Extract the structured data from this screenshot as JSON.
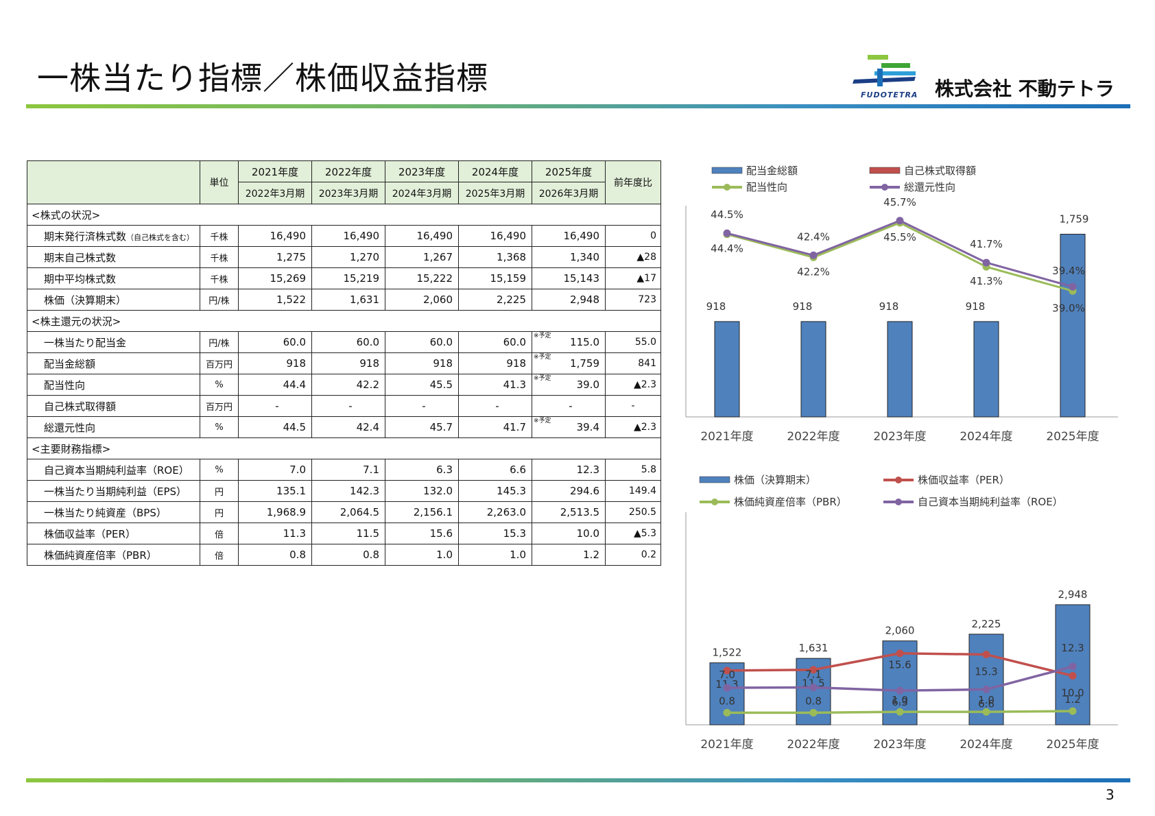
{
  "page": {
    "title": "一株当たり指標／株価収益指標",
    "company": "株式会社 不動テトラ",
    "logo_text": "FUDOTETRA",
    "page_number": "3"
  },
  "table": {
    "unit_header": "単位",
    "change_header": "前年度比",
    "years": [
      "2021年度",
      "2022年度",
      "2023年度",
      "2024年度",
      "2025年度"
    ],
    "periods": [
      "2022年3月期",
      "2023年3月期",
      "2024年3月期",
      "2025年3月期",
      "2026年3月期"
    ],
    "forecast_note": "※予定",
    "sections": [
      {
        "title": "<株式の状況>",
        "rows": [
          {
            "label": "期末発行済株式数",
            "sub": "（自己株式を含む）",
            "unit": "千株",
            "values": [
              "16,490",
              "16,490",
              "16,490",
              "16,490",
              "16,490"
            ],
            "change": "0",
            "forecast": false
          },
          {
            "label": "期末自己株式数",
            "sub": "",
            "unit": "千株",
            "values": [
              "1,275",
              "1,270",
              "1,267",
              "1,368",
              "1,340"
            ],
            "change": "▲28",
            "forecast": false
          },
          {
            "label": "期中平均株式数",
            "sub": "",
            "unit": "千株",
            "values": [
              "15,269",
              "15,219",
              "15,222",
              "15,159",
              "15,143"
            ],
            "change": "▲17",
            "forecast": false
          },
          {
            "label": "株価（決算期末）",
            "sub": "",
            "unit": "円/株",
            "values": [
              "1,522",
              "1,631",
              "2,060",
              "2,225",
              "2,948"
            ],
            "change": "723",
            "forecast": false
          }
        ]
      },
      {
        "title": "<株主還元の状況>",
        "rows": [
          {
            "label": "一株当たり配当金",
            "sub": "",
            "unit": "円/株",
            "values": [
              "60.0",
              "60.0",
              "60.0",
              "60.0",
              "115.0"
            ],
            "change": "55.0",
            "forecast": true
          },
          {
            "label": "配当金総額",
            "sub": "",
            "unit": "百万円",
            "values": [
              "918",
              "918",
              "918",
              "918",
              "1,759"
            ],
            "change": "841",
            "forecast": true
          },
          {
            "label": "配当性向",
            "sub": "",
            "unit": "%",
            "values": [
              "44.4",
              "42.2",
              "45.5",
              "41.3",
              "39.0"
            ],
            "change": "▲2.3",
            "forecast": true
          },
          {
            "label": "自己株式取得額",
            "sub": "",
            "unit": "百万円",
            "values": [
              "-",
              "-",
              "-",
              "-",
              "-"
            ],
            "change": "-",
            "forecast": false
          },
          {
            "label": "総還元性向",
            "sub": "",
            "unit": "%",
            "values": [
              "44.5",
              "42.4",
              "45.7",
              "41.7",
              "39.4"
            ],
            "change": "▲2.3",
            "forecast": true
          }
        ]
      },
      {
        "title": "<主要財務指標>",
        "rows": [
          {
            "label": "自己資本当期純利益率（ROE）",
            "sub": "",
            "unit": "%",
            "values": [
              "7.0",
              "7.1",
              "6.3",
              "6.6",
              "12.3"
            ],
            "change": "5.8",
            "forecast": false
          },
          {
            "label": "一株当たり当期純利益（EPS）",
            "sub": "",
            "unit": "円",
            "values": [
              "135.1",
              "142.3",
              "132.0",
              "145.3",
              "294.6"
            ],
            "change": "149.4",
            "forecast": false
          },
          {
            "label": "一株当たり純資産（BPS）",
            "sub": "",
            "unit": "円",
            "values": [
              "1,968.9",
              "2,064.5",
              "2,156.1",
              "2,263.0",
              "2,513.5"
            ],
            "change": "250.5",
            "forecast": false
          },
          {
            "label": "株価収益率（PER）",
            "sub": "",
            "unit": "倍",
            "values": [
              "11.3",
              "11.5",
              "15.6",
              "15.3",
              "10.0"
            ],
            "change": "▲5.3",
            "forecast": false
          },
          {
            "label": "株価純資産倍率（PBR）",
            "sub": "",
            "unit": "倍",
            "values": [
              "0.8",
              "0.8",
              "1.0",
              "1.0",
              "1.2"
            ],
            "change": "0.2",
            "forecast": false
          }
        ]
      }
    ]
  },
  "chart_data": [
    {
      "type": "bar",
      "categories": [
        "2021年度",
        "2022年度",
        "2023年度",
        "2024年度",
        "2025年度"
      ],
      "series": [
        {
          "name": "配当金総額",
          "kind": "bar",
          "color": "#4f81bd",
          "values": [
            918,
            918,
            918,
            918,
            1759
          ],
          "labels": [
            "918",
            "918",
            "918",
            "918",
            "1,759"
          ]
        },
        {
          "name": "自己株式取得額",
          "kind": "bar",
          "color": "#c0504d",
          "values": [
            0,
            0,
            0,
            0,
            0
          ],
          "labels": []
        },
        {
          "name": "配当性向",
          "kind": "line",
          "color": "#9bbb59",
          "values": [
            44.4,
            42.2,
            45.5,
            41.3,
            39.0
          ],
          "labels": [
            "44.4%",
            "42.2%",
            "45.5%",
            "41.3%",
            "39.0%"
          ]
        },
        {
          "name": "総還元性向",
          "kind": "line",
          "color": "#8064a2",
          "values": [
            44.5,
            42.4,
            45.7,
            41.7,
            39.4
          ],
          "labels": [
            "44.5%",
            "42.4%",
            "45.7%",
            "41.7%",
            "39.4%"
          ]
        }
      ],
      "legend": "top",
      "grid": false
    },
    {
      "type": "bar",
      "categories": [
        "2021年度",
        "2022年度",
        "2023年度",
        "2024年度",
        "2025年度"
      ],
      "series": [
        {
          "name": "株価（決算期末）",
          "kind": "bar",
          "color": "#4f81bd",
          "values": [
            1522,
            1631,
            2060,
            2225,
            2948
          ],
          "labels": [
            "1,522",
            "1,631",
            "2,060",
            "2,225",
            "2,948"
          ]
        },
        {
          "name": "株価収益率（PER）",
          "kind": "line",
          "color": "#c0504d",
          "values": [
            11.3,
            11.5,
            15.6,
            15.3,
            10.0
          ],
          "labels": [
            "11.3",
            "11.5",
            "15.6",
            "15.3",
            "10.0"
          ]
        },
        {
          "name": "株価純資産倍率（PBR）",
          "kind": "line",
          "color": "#9bbb59",
          "values": [
            0.8,
            0.8,
            1.0,
            1.0,
            1.2
          ],
          "labels": [
            "0.8",
            "0.8",
            "1.0",
            "1.0",
            "1.2"
          ]
        },
        {
          "name": "自己資本当期純利益率（ROE）",
          "kind": "line",
          "color": "#8064a2",
          "values": [
            7.0,
            7.1,
            6.3,
            6.6,
            12.3
          ],
          "labels": [
            "7.0",
            "7.1",
            "6.3",
            "6.6",
            "12.3"
          ]
        }
      ],
      "legend": "top",
      "grid": false
    }
  ]
}
